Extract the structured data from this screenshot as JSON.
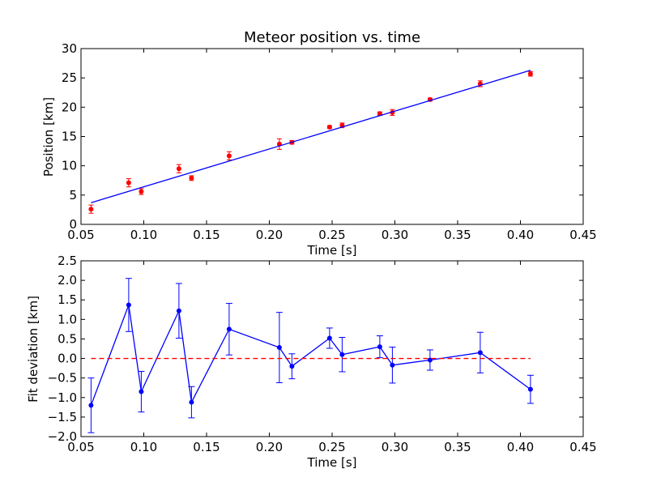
{
  "chart_data": [
    {
      "type": "scatter",
      "title": "Meteor position vs. time",
      "xlabel": "Time [s]",
      "ylabel": "Position [km]",
      "xlim": [
        0.05,
        0.45
      ],
      "ylim": [
        0,
        30
      ],
      "xticks": [
        "0.05",
        "0.10",
        "0.15",
        "0.20",
        "0.25",
        "0.30",
        "0.35",
        "0.40",
        "0.45"
      ],
      "yticks": [
        "0",
        "5",
        "10",
        "15",
        "20",
        "25",
        "30"
      ],
      "grid": false,
      "series": [
        {
          "style": "points-with-errorbars",
          "color": "#ff0000",
          "x": [
            0.058,
            0.088,
            0.098,
            0.128,
            0.138,
            0.168,
            0.208,
            0.218,
            0.248,
            0.258,
            0.288,
            0.298,
            0.328,
            0.368,
            0.408
          ],
          "y": [
            2.6,
            7.1,
            5.6,
            9.5,
            7.9,
            11.7,
            13.7,
            14.0,
            16.6,
            16.9,
            18.9,
            19.1,
            21.3,
            24.0,
            25.7
          ],
          "yerr": [
            0.7,
            0.7,
            0.5,
            0.7,
            0.4,
            0.7,
            0.9,
            0.3,
            0.25,
            0.4,
            0.3,
            0.5,
            0.25,
            0.5,
            0.4
          ]
        },
        {
          "style": "line",
          "color": "#0000ff",
          "x": [
            0.058,
            0.408
          ],
          "y": [
            3.7,
            26.3
          ]
        }
      ]
    },
    {
      "type": "line",
      "title": "",
      "xlabel": "Time [s]",
      "ylabel": "Fit deviation [km]",
      "xlim": [
        0.05,
        0.45
      ],
      "ylim": [
        -2.0,
        2.5
      ],
      "xticks": [
        "0.05",
        "0.10",
        "0.15",
        "0.20",
        "0.25",
        "0.30",
        "0.35",
        "0.40",
        "0.45"
      ],
      "yticks": [
        "2.5",
        "2.0",
        "1.5",
        "1.0",
        "0.5",
        "0.0",
        "−0.5",
        "−1.0",
        "−1.5",
        "−2.0"
      ],
      "grid": false,
      "series": [
        {
          "style": "line-points-with-errorbars",
          "color": "#0000ff",
          "x": [
            0.058,
            0.088,
            0.098,
            0.128,
            0.138,
            0.168,
            0.208,
            0.218,
            0.248,
            0.258,
            0.288,
            0.298,
            0.328,
            0.368,
            0.408
          ],
          "y": [
            -1.2,
            1.37,
            -0.85,
            1.22,
            -1.12,
            0.75,
            0.28,
            -0.2,
            0.52,
            0.1,
            0.3,
            -0.17,
            -0.04,
            0.15,
            -0.79
          ],
          "yerr": [
            0.7,
            0.68,
            0.52,
            0.7,
            0.4,
            0.66,
            0.9,
            0.32,
            0.26,
            0.44,
            0.28,
            0.46,
            0.26,
            0.52,
            0.36
          ]
        },
        {
          "style": "dashed-line",
          "color": "#ff0000",
          "x": [
            0.058,
            0.408
          ],
          "y": [
            0.0,
            0.0
          ]
        }
      ]
    }
  ]
}
